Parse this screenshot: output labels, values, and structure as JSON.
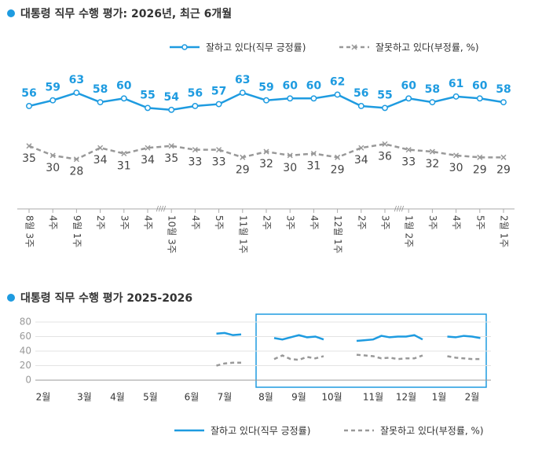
{
  "chart_data": [
    {
      "type": "line",
      "title": "대통령 직무 수행 평가: 2026년, 최근 6개월",
      "categories": [
        "8월 3주",
        "4주",
        "9월 1주",
        "2주",
        "3주",
        "4주",
        "10월 3주",
        "4주",
        "5주",
        "11월 1주",
        "2주",
        "3주",
        "4주",
        "12월 1주",
        "2주",
        "3주",
        "1월 2주",
        "3주",
        "4주",
        "5주",
        "2월 1주"
      ],
      "series": [
        {
          "name": "잘하고 있다(직무 긍정률)",
          "color": "#1e9be0",
          "values": [
            56,
            59,
            63,
            58,
            60,
            55,
            54,
            56,
            57,
            63,
            59,
            60,
            60,
            62,
            56,
            55,
            60,
            58,
            61,
            60,
            58
          ]
        },
        {
          "name": "잘못하고 있다(부정률, %)",
          "color": "#999999",
          "values": [
            35,
            30,
            28,
            34,
            31,
            34,
            35,
            33,
            33,
            29,
            32,
            30,
            31,
            29,
            34,
            36,
            33,
            32,
            30,
            29,
            29
          ]
        }
      ]
    },
    {
      "type": "line",
      "title": "대통령 직무 수행 평가 2025-2026",
      "categories": [
        "2월",
        null,
        null,
        null,
        null,
        "3월",
        null,
        null,
        null,
        "4월",
        null,
        null,
        null,
        "5월",
        null,
        null,
        null,
        null,
        "6월",
        null,
        null,
        null,
        "7월",
        null,
        null,
        null,
        null,
        "8월",
        null,
        null,
        null,
        "9월",
        null,
        null,
        null,
        "10월",
        null,
        null,
        null,
        null,
        "11월",
        null,
        null,
        null,
        "12월",
        null,
        null,
        null,
        "1월",
        null,
        null,
        null,
        "2월",
        null
      ],
      "ylim": [
        0,
        80
      ],
      "yticks": [
        0,
        20,
        40,
        60,
        80
      ],
      "grid": true,
      "series": [
        {
          "name": "잘하고 있다(직무 긍정률)",
          "color": "#1e9be0",
          "values": [
            null,
            null,
            null,
            null,
            null,
            null,
            null,
            null,
            null,
            null,
            null,
            null,
            null,
            null,
            null,
            null,
            null,
            null,
            null,
            null,
            null,
            64,
            65,
            62,
            63,
            null,
            null,
            null,
            58,
            56,
            59,
            62,
            59,
            60,
            56,
            null,
            null,
            null,
            54,
            55,
            56,
            61,
            59,
            60,
            60,
            62,
            56,
            null,
            null,
            60,
            59,
            61,
            60,
            58
          ]
        },
        {
          "name": "잘못하고 있다(부정률, %)",
          "color": "#999999",
          "values": [
            null,
            null,
            null,
            null,
            null,
            null,
            null,
            null,
            null,
            null,
            null,
            null,
            null,
            null,
            null,
            null,
            null,
            null,
            null,
            null,
            null,
            20,
            23,
            24,
            24,
            null,
            null,
            null,
            29,
            34,
            29,
            28,
            32,
            30,
            33,
            null,
            null,
            null,
            35,
            34,
            33,
            30,
            31,
            29,
            30,
            30,
            34,
            null,
            null,
            33,
            31,
            30,
            29,
            29
          ]
        }
      ]
    }
  ]
}
